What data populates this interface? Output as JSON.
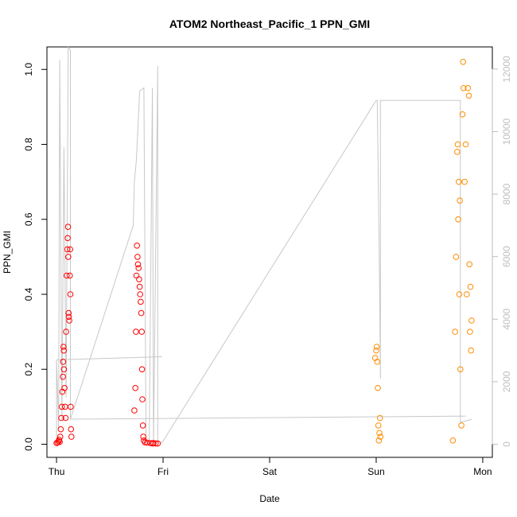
{
  "chart_data": {
    "type": "scatter",
    "title": "ATOM2 Northeast_Pacific_1 PPN_GMI",
    "xlabel": "Date",
    "ylabel": "PPN_GMI",
    "x_ticks": [
      "Thu",
      "Fri",
      "Sat",
      "Sun",
      "Mon"
    ],
    "x_range_days": [
      -0.09,
      4.09
    ],
    "ylim": [
      -0.035,
      1.06
    ],
    "y_ticks": [
      0.0,
      0.2,
      0.4,
      0.6,
      0.8,
      1.0
    ],
    "y2_ticks": [
      0,
      2000,
      4000,
      6000,
      8000,
      10000,
      12000
    ],
    "y2lim": [
      -420,
      12710
    ],
    "colors": {
      "red": "#ff0000",
      "orange": "#ff8c00",
      "line": "#c8c8c8",
      "axis": "#000000",
      "y2_axis": "#bebebe"
    },
    "series": [
      {
        "color": "red",
        "marker": "open-circle",
        "points": [
          [
            0.0,
            0.003
          ],
          [
            0.01,
            0.005
          ],
          [
            0.02,
            0.008
          ],
          [
            0.025,
            0.012
          ],
          [
            0.03,
            0.006
          ],
          [
            0.035,
            0.02
          ],
          [
            0.04,
            0.04
          ],
          [
            0.045,
            0.07
          ],
          [
            0.05,
            0.1
          ],
          [
            0.055,
            0.14
          ],
          [
            0.06,
            0.18
          ],
          [
            0.062,
            0.22
          ],
          [
            0.065,
            0.26
          ],
          [
            0.068,
            0.25
          ],
          [
            0.07,
            0.2
          ],
          [
            0.075,
            0.15
          ],
          [
            0.08,
            0.1
          ],
          [
            0.085,
            0.07
          ],
          [
            0.09,
            0.3
          ],
          [
            0.095,
            0.45
          ],
          [
            0.1,
            0.52
          ],
          [
            0.105,
            0.55
          ],
          [
            0.108,
            0.58
          ],
          [
            0.11,
            0.5
          ],
          [
            0.113,
            0.35
          ],
          [
            0.116,
            0.34
          ],
          [
            0.12,
            0.33
          ],
          [
            0.125,
            0.45
          ],
          [
            0.128,
            0.52
          ],
          [
            0.13,
            0.4
          ],
          [
            0.133,
            0.1
          ],
          [
            0.136,
            0.04
          ],
          [
            0.14,
            0.02
          ],
          [
            0.73,
            0.09
          ],
          [
            0.74,
            0.15
          ],
          [
            0.745,
            0.3
          ],
          [
            0.75,
            0.45
          ],
          [
            0.755,
            0.53
          ],
          [
            0.76,
            0.5
          ],
          [
            0.765,
            0.48
          ],
          [
            0.77,
            0.47
          ],
          [
            0.775,
            0.44
          ],
          [
            0.78,
            0.42
          ],
          [
            0.785,
            0.4
          ],
          [
            0.79,
            0.38
          ],
          [
            0.795,
            0.35
          ],
          [
            0.8,
            0.3
          ],
          [
            0.803,
            0.2
          ],
          [
            0.806,
            0.12
          ],
          [
            0.81,
            0.05
          ],
          [
            0.815,
            0.02
          ],
          [
            0.82,
            0.01
          ],
          [
            0.83,
            0.005
          ],
          [
            0.85,
            0.004
          ],
          [
            0.88,
            0.003
          ],
          [
            0.9,
            0.002
          ],
          [
            0.91,
            0.003
          ],
          [
            0.93,
            0.002
          ],
          [
            0.95,
            0.002
          ]
        ]
      },
      {
        "color": "orange",
        "marker": "open-circle",
        "points": [
          [
            2.99,
            0.23
          ],
          [
            3.0,
            0.25
          ],
          [
            3.005,
            0.26
          ],
          [
            3.01,
            0.22
          ],
          [
            3.015,
            0.15
          ],
          [
            3.02,
            0.05
          ],
          [
            3.025,
            0.01
          ],
          [
            3.03,
            0.03
          ],
          [
            3.035,
            0.07
          ],
          [
            3.04,
            0.02
          ],
          [
            3.72,
            0.01
          ],
          [
            3.74,
            0.3
          ],
          [
            3.75,
            0.5
          ],
          [
            3.76,
            0.78
          ],
          [
            3.765,
            0.8
          ],
          [
            3.77,
            0.6
          ],
          [
            3.775,
            0.7
          ],
          [
            3.78,
            0.4
          ],
          [
            3.785,
            0.65
          ],
          [
            3.79,
            0.2
          ],
          [
            3.8,
            0.05
          ],
          [
            3.81,
            0.88
          ],
          [
            3.815,
            1.02
          ],
          [
            3.82,
            0.95
          ],
          [
            3.83,
            0.7
          ],
          [
            3.84,
            0.8
          ],
          [
            3.85,
            0.4
          ],
          [
            3.86,
            0.95
          ],
          [
            3.87,
            0.93
          ],
          [
            3.875,
            0.48
          ],
          [
            3.88,
            0.3
          ],
          [
            3.885,
            0.42
          ],
          [
            3.89,
            0.25
          ],
          [
            3.895,
            0.33
          ]
        ]
      }
    ],
    "line_series": {
      "color": "line",
      "y_axis": "right",
      "points": [
        [
          0.0,
          0
        ],
        [
          0.0,
          2700
        ],
        [
          0.02,
          500
        ],
        [
          0.03,
          12300
        ],
        [
          0.05,
          800
        ],
        [
          0.07,
          9500
        ],
        [
          0.09,
          1500
        ],
        [
          0.11,
          12700
        ],
        [
          0.13,
          12600
        ],
        [
          0.13,
          2900
        ],
        [
          0.13,
          800
        ],
        [
          0.72,
          7000
        ],
        [
          0.73,
          8400
        ],
        [
          0.75,
          9100
        ],
        [
          0.78,
          11300
        ],
        [
          0.82,
          11400
        ],
        [
          0.84,
          100
        ],
        [
          0.87,
          0
        ],
        [
          0.9,
          11400
        ],
        [
          0.91,
          0
        ],
        [
          0.95,
          12100
        ],
        [
          0.95,
          2800
        ],
        [
          0.95,
          100
        ],
        [
          0.99,
          50
        ],
        [
          3.0,
          11000
        ],
        [
          3.01,
          11000
        ],
        [
          3.03,
          5700
        ],
        [
          3.04,
          2100
        ],
        [
          3.04,
          11000
        ],
        [
          3.79,
          11000
        ],
        [
          3.79,
          700
        ],
        [
          3.9,
          800
        ]
      ],
      "baseline_segments": [
        [
          [
            0.0,
            2700
          ],
          [
            0.99,
            2800
          ]
        ],
        [
          [
            0.13,
            800
          ],
          [
            3.84,
            900
          ]
        ]
      ]
    }
  }
}
